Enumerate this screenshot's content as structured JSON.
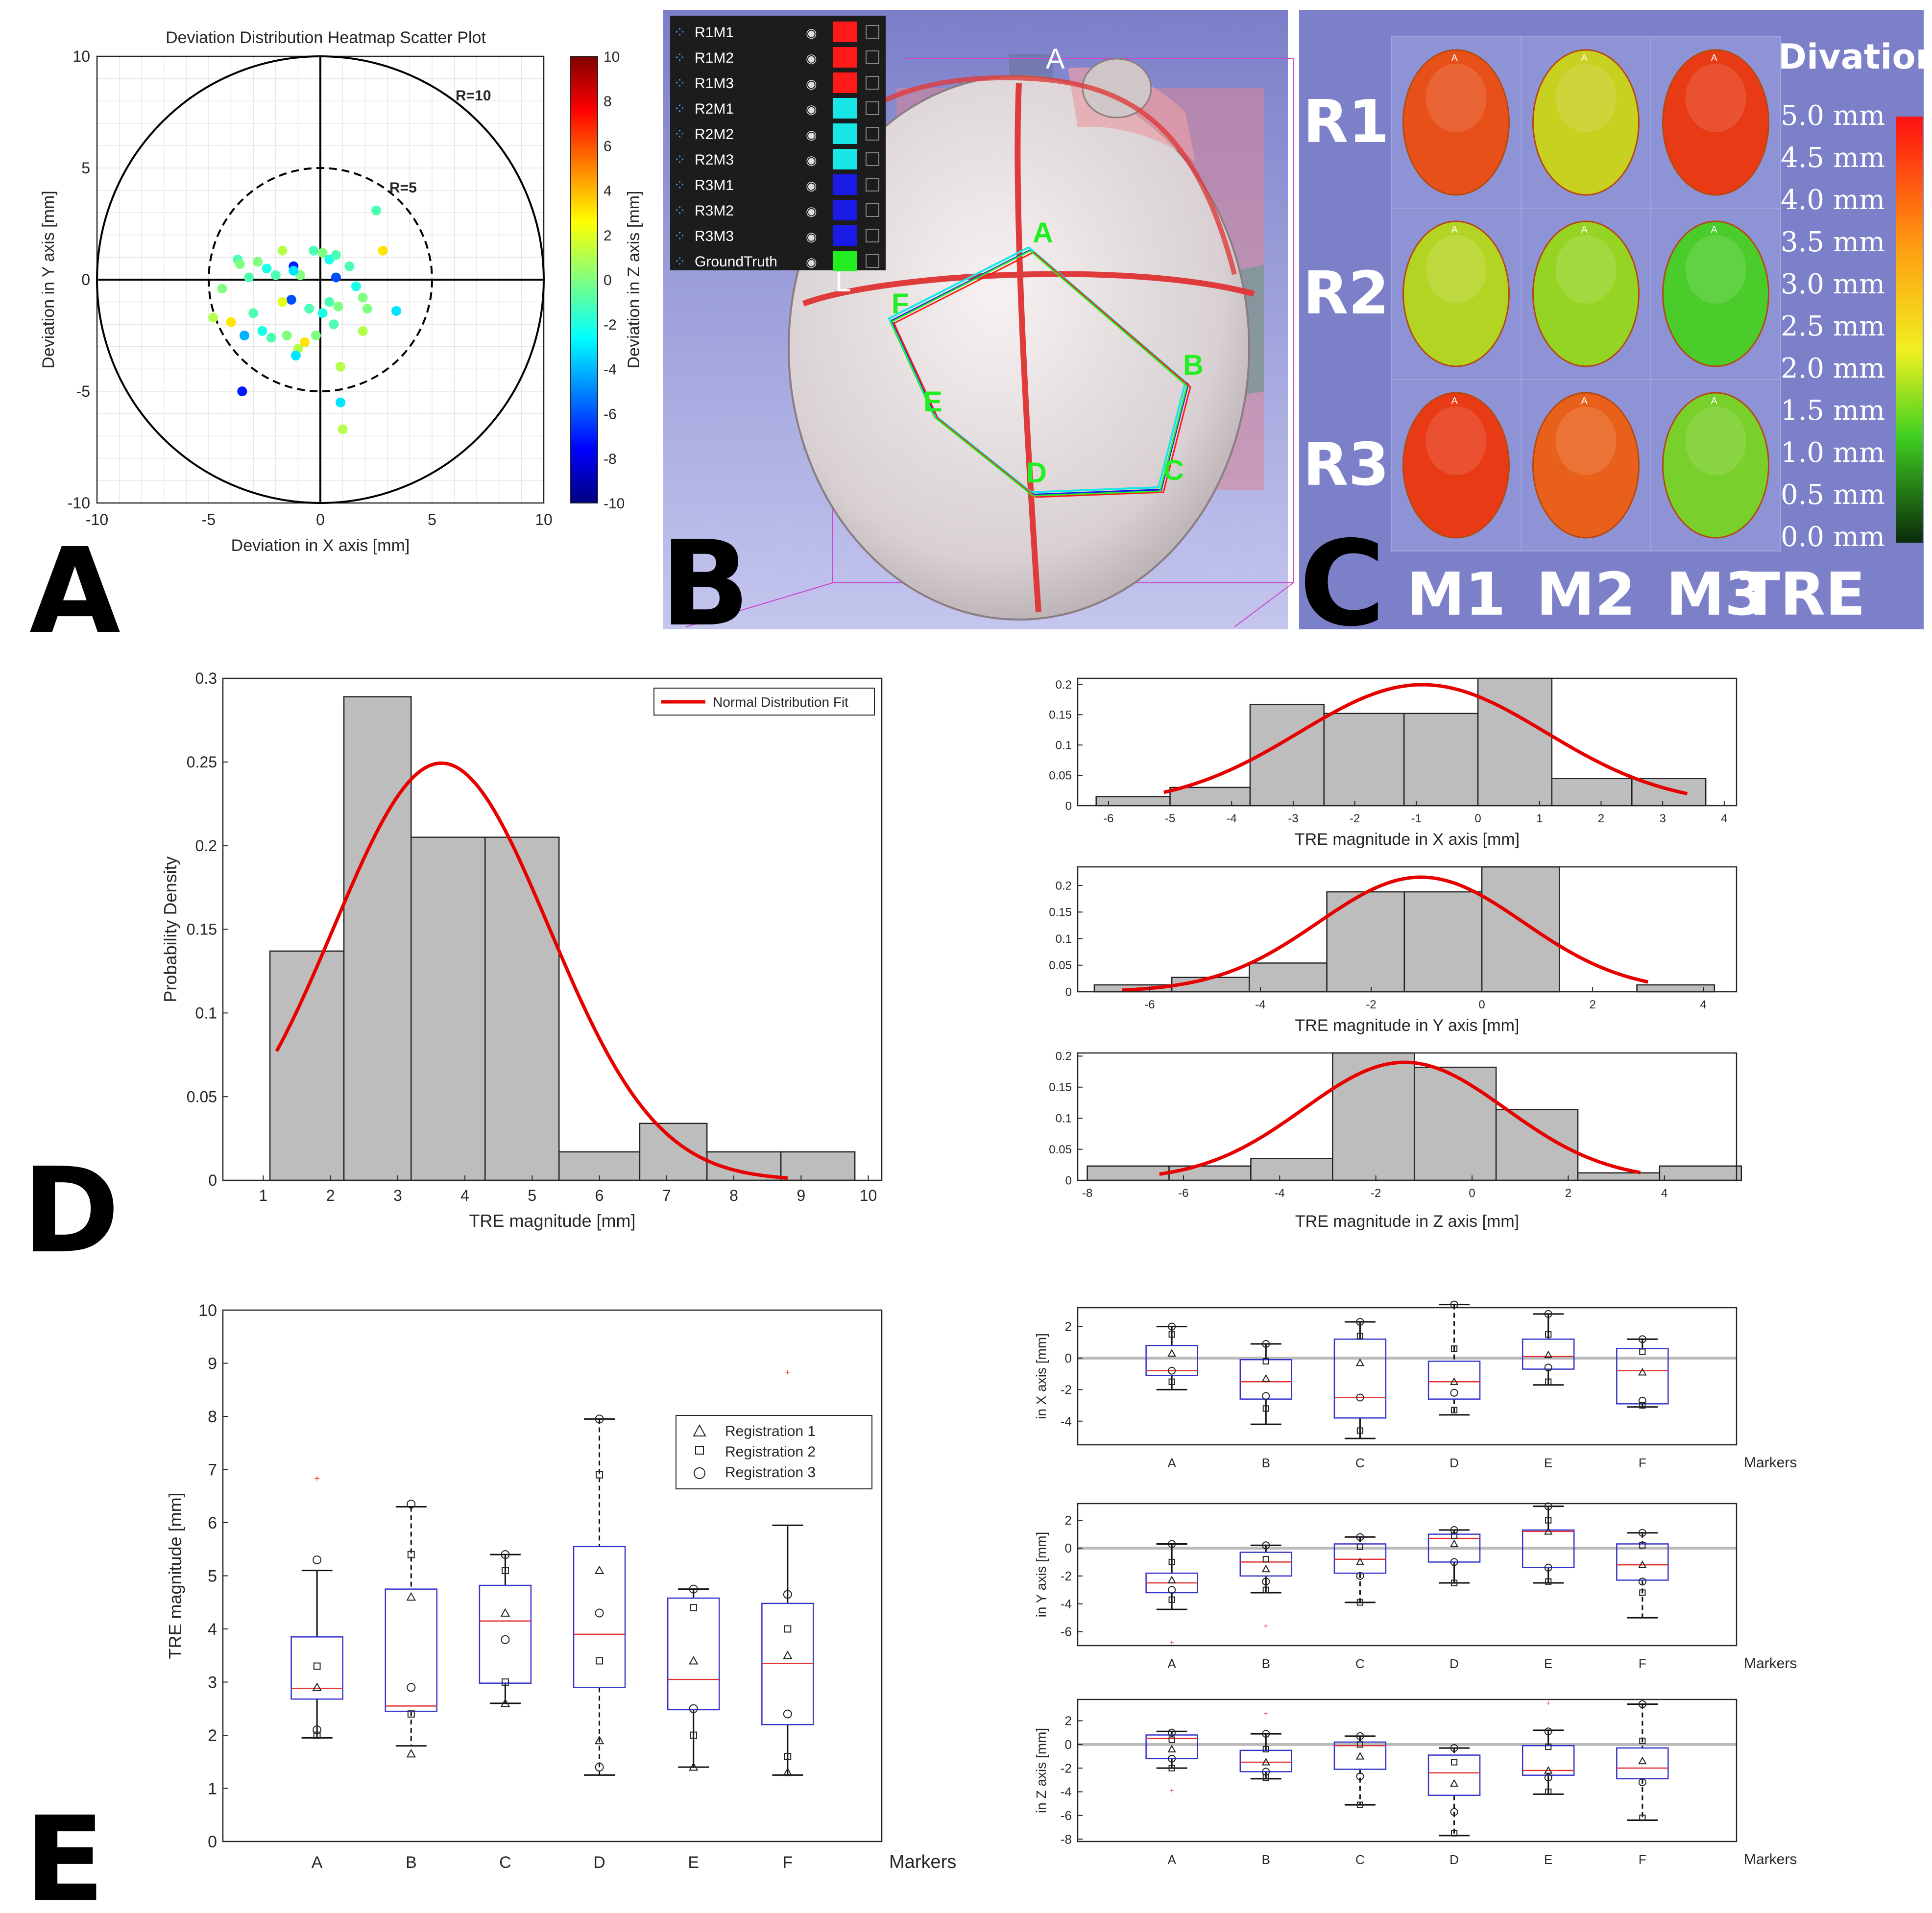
{
  "panel_labels": {
    "a": "A",
    "b": "B",
    "c": "C",
    "d": "D",
    "e": "E"
  },
  "chart_data": [
    {
      "id": "A",
      "type": "scatter",
      "title": "Deviation Distribution Heatmap Scatter Plot",
      "xlabel": "Deviation in X axis [mm]",
      "ylabel": "Deviation in Y axis [mm]",
      "xlim": [
        -10,
        10
      ],
      "ylim": [
        -10,
        10
      ],
      "xticks": [
        -10,
        -5,
        0,
        5,
        10
      ],
      "yticks": [
        -10,
        -5,
        0,
        5,
        10
      ],
      "circles": [
        {
          "r": 10,
          "label": "R=10",
          "style": "solid"
        },
        {
          "r": 5,
          "label": "R=5",
          "style": "dashed"
        }
      ],
      "colorbar": {
        "label": "Deviation in Z axis [mm]",
        "range": [
          -10,
          10
        ],
        "ticks": [
          10,
          8,
          6,
          4,
          2,
          0,
          -2,
          -4,
          -6,
          -8,
          -10
        ]
      },
      "points": [
        {
          "x": 2.5,
          "y": 3.1,
          "z": -1
        },
        {
          "x": 2.8,
          "y": 1.3,
          "z": 3
        },
        {
          "x": -1.2,
          "y": 0.6,
          "z": -7
        },
        {
          "x": -1.3,
          "y": -0.9,
          "z": -6
        },
        {
          "x": -3.5,
          "y": -5.0,
          "z": -7
        },
        {
          "x": 0.7,
          "y": 0.1,
          "z": -6
        },
        {
          "x": -1.7,
          "y": -1.0,
          "z": 2
        },
        {
          "x": -4.8,
          "y": -1.7,
          "z": 1
        },
        {
          "x": -4.4,
          "y": -0.4,
          "z": 0
        },
        {
          "x": -3.7,
          "y": 0.9,
          "z": -1
        },
        {
          "x": -3.6,
          "y": 0.7,
          "z": 0
        },
        {
          "x": -3.2,
          "y": 0.1,
          "z": -1
        },
        {
          "x": -2.8,
          "y": 0.8,
          "z": 0
        },
        {
          "x": -2.4,
          "y": 0.5,
          "z": -2
        },
        {
          "x": -2.0,
          "y": 0.2,
          "z": -1
        },
        {
          "x": -1.7,
          "y": 1.3,
          "z": 1
        },
        {
          "x": -0.9,
          "y": 0.2,
          "z": 0
        },
        {
          "x": -0.3,
          "y": 1.3,
          "z": -1
        },
        {
          "x": 0.1,
          "y": 1.2,
          "z": 0
        },
        {
          "x": 0.4,
          "y": 0.9,
          "z": -2
        },
        {
          "x": 0.7,
          "y": 1.1,
          "z": -1
        },
        {
          "x": 1.3,
          "y": 0.6,
          "z": -1
        },
        {
          "x": 1.6,
          "y": -0.3,
          "z": -2
        },
        {
          "x": 2.1,
          "y": -1.3,
          "z": 0
        },
        {
          "x": 1.9,
          "y": -2.3,
          "z": 1
        },
        {
          "x": 3.4,
          "y": -1.4,
          "z": -3
        },
        {
          "x": -4.0,
          "y": -1.9,
          "z": 3
        },
        {
          "x": -3.0,
          "y": -1.5,
          "z": -1
        },
        {
          "x": -2.6,
          "y": -2.3,
          "z": -2
        },
        {
          "x": -2.2,
          "y": -2.6,
          "z": -1
        },
        {
          "x": -1.5,
          "y": -2.5,
          "z": 0
        },
        {
          "x": -1.0,
          "y": -3.1,
          "z": 1
        },
        {
          "x": -1.1,
          "y": -3.4,
          "z": -3
        },
        {
          "x": -0.7,
          "y": -2.8,
          "z": 3
        },
        {
          "x": -0.2,
          "y": -2.5,
          "z": 0
        },
        {
          "x": 0.4,
          "y": -1.0,
          "z": -1
        },
        {
          "x": 0.8,
          "y": -1.2,
          "z": 0
        },
        {
          "x": 0.1,
          "y": -1.5,
          "z": -2
        },
        {
          "x": 0.6,
          "y": -2.0,
          "z": -1
        },
        {
          "x": 0.9,
          "y": -3.9,
          "z": 1
        },
        {
          "x": 0.9,
          "y": -5.5,
          "z": -3
        },
        {
          "x": 1.0,
          "y": -6.7,
          "z": 1
        },
        {
          "x": -0.5,
          "y": -1.3,
          "z": -1
        },
        {
          "x": 1.9,
          "y": -0.8,
          "z": 0
        },
        {
          "x": -3.4,
          "y": -2.5,
          "z": -4
        },
        {
          "x": -1.2,
          "y": 0.4,
          "z": -3
        }
      ]
    },
    {
      "id": "D-main",
      "type": "bar",
      "xlabel": "TRE magnitude [mm]",
      "ylabel": "Probability Density",
      "legend": "Normal Distribution Fit",
      "xlim": [
        0.4,
        10.2
      ],
      "ylim": [
        0,
        0.3
      ],
      "xticks": [
        1,
        2,
        3,
        4,
        5,
        6,
        7,
        8,
        9,
        10
      ],
      "yticks": [
        0,
        0.05,
        0.1,
        0.15,
        0.2,
        0.25,
        0.3
      ],
      "bin_edges": [
        1.1,
        2.2,
        3.2,
        4.3,
        5.4,
        6.6,
        7.6,
        8.7,
        9.8
      ],
      "values": [
        0.137,
        0.289,
        0.205,
        0.205,
        0.017,
        0.034,
        0.017,
        0.017
      ],
      "fit": {
        "mean": 3.65,
        "sd": 1.6,
        "range": [
          1.2,
          8.8
        ]
      }
    },
    {
      "id": "D-x",
      "type": "bar",
      "xlabel": "TRE magnitude in X axis [mm]",
      "xlim": [
        -6.5,
        4.2
      ],
      "ylim": [
        0,
        0.21
      ],
      "xticks": [
        -6,
        -5,
        -4,
        -3,
        -2,
        -1,
        0,
        1,
        2,
        3,
        4
      ],
      "yticks": [
        0,
        0.05,
        0.1,
        0.15,
        0.2
      ],
      "bin_edges": [
        -6.2,
        -5.0,
        -3.7,
        -2.5,
        -1.2,
        0,
        1.2,
        2.5,
        3.7
      ],
      "values": [
        0.015,
        0.03,
        0.167,
        0.152,
        0.152,
        0.21,
        0.045,
        0.045
      ],
      "fit": {
        "mean": -0.9,
        "sd": 2.0,
        "range": [
          -5.1,
          3.4
        ]
      }
    },
    {
      "id": "D-y",
      "type": "bar",
      "xlabel": "TRE magnitude in Y axis [mm]",
      "xlim": [
        -7.3,
        4.6
      ],
      "ylim": [
        0,
        0.235
      ],
      "xticks": [
        -6,
        -4,
        -2,
        0,
        2,
        4
      ],
      "yticks": [
        0,
        0.05,
        0.1,
        0.15,
        0.2
      ],
      "bin_edges": [
        -7.0,
        -5.6,
        -4.2,
        -2.8,
        -1.4,
        0,
        1.4,
        2.8,
        4.2
      ],
      "values": [
        0.013,
        0.027,
        0.054,
        0.188,
        0.188,
        0.235,
        0,
        0.013
      ],
      "fit": {
        "mean": -1.1,
        "sd": 1.85,
        "range": [
          -6.5,
          3.0
        ]
      }
    },
    {
      "id": "D-z",
      "type": "bar",
      "xlabel": "TRE magnitude in Z axis [mm]",
      "xlim": [
        -8.2,
        5.5
      ],
      "ylim": [
        0,
        0.205
      ],
      "xticks": [
        -8,
        -6,
        -4,
        -2,
        0,
        2,
        4
      ],
      "yticks": [
        0,
        0.05,
        0.1,
        0.15,
        0.2
      ],
      "bin_edges": [
        -8.0,
        -6.3,
        -4.6,
        -2.9,
        -1.2,
        0.5,
        2.2,
        3.9,
        5.6
      ],
      "values": [
        0.023,
        0.023,
        0.035,
        0.205,
        0.182,
        0.114,
        0.012,
        0.023
      ],
      "fit": {
        "mean": -1.4,
        "sd": 2.1,
        "range": [
          -6.5,
          3.5
        ]
      }
    },
    {
      "id": "E-main",
      "type": "box",
      "ylabel": "TRE magnitude [mm]",
      "xlabel": "Markers",
      "ylim": [
        0,
        10
      ],
      "yticks": [
        0,
        1,
        2,
        3,
        4,
        5,
        6,
        7,
        8,
        9,
        10
      ],
      "categories": [
        "A",
        "B",
        "C",
        "D",
        "E",
        "F"
      ],
      "legend": [
        "Registration 1",
        "Registration 2",
        "Registration 3"
      ],
      "boxes": [
        {
          "q1": 2.68,
          "med": 2.88,
          "q3": 3.85,
          "lo": 1.95,
          "hi": 5.1,
          "out": [
            6.85
          ],
          "dashed": false,
          "pts": [
            5.3,
            3.3,
            2.9,
            2.1,
            2.0
          ]
        },
        {
          "q1": 2.45,
          "med": 2.55,
          "q3": 4.75,
          "lo": 1.8,
          "hi": 6.3,
          "out": [],
          "dashed": true,
          "pts": [
            6.35,
            5.4,
            4.6,
            2.9,
            2.4,
            1.65
          ]
        },
        {
          "q1": 2.98,
          "med": 4.15,
          "q3": 4.82,
          "lo": 2.6,
          "hi": 5.4,
          "out": [],
          "dashed": false,
          "pts": [
            5.4,
            5.1,
            4.3,
            3.8,
            3.0,
            2.6
          ]
        },
        {
          "q1": 2.9,
          "med": 3.9,
          "q3": 5.55,
          "lo": 1.25,
          "hi": 7.95,
          "out": [],
          "dashed": true,
          "pts": [
            7.95,
            6.9,
            5.1,
            4.3,
            3.4,
            1.9,
            1.4
          ]
        },
        {
          "q1": 2.48,
          "med": 3.05,
          "q3": 4.58,
          "lo": 1.4,
          "hi": 4.75,
          "out": [],
          "dashed": false,
          "pts": [
            4.75,
            4.4,
            3.4,
            2.5,
            2.0,
            1.4
          ]
        },
        {
          "q1": 2.2,
          "med": 3.35,
          "q3": 4.48,
          "lo": 1.25,
          "hi": 5.95,
          "out": [
            8.85
          ],
          "dashed": false,
          "pts": [
            4.65,
            4.0,
            3.5,
            2.4,
            1.6,
            1.3
          ]
        }
      ]
    },
    {
      "id": "E-x",
      "type": "box",
      "ylabel": "in X axis [mm]",
      "xlabel": "Markers",
      "ylim": [
        -5.5,
        3.2
      ],
      "yticks": [
        2,
        0,
        -2,
        -4
      ],
      "categories": [
        "A",
        "B",
        "C",
        "D",
        "E",
        "F"
      ],
      "boxes": [
        {
          "q1": -1.1,
          "med": -0.8,
          "q3": 0.8,
          "lo": -2.0,
          "hi": 2.0,
          "out": [],
          "dashed": false,
          "pts": [
            2.0,
            1.5,
            0.3,
            -0.8,
            -1.5
          ]
        },
        {
          "q1": -2.6,
          "med": -1.5,
          "q3": -0.1,
          "lo": -4.2,
          "hi": 0.9,
          "out": [],
          "dashed": false,
          "pts": [
            0.9,
            -0.2,
            -1.3,
            -2.4,
            -3.2
          ]
        },
        {
          "q1": -3.8,
          "med": -2.5,
          "q3": 1.2,
          "lo": -5.1,
          "hi": 2.3,
          "out": [],
          "dashed": false,
          "pts": [
            2.3,
            1.4,
            -0.3,
            -2.5,
            -4.6
          ]
        },
        {
          "q1": -2.6,
          "med": -1.5,
          "q3": -0.2,
          "lo": -3.6,
          "hi": 3.4,
          "out": [],
          "dashed": true,
          "pts": [
            3.4,
            0.6,
            -1.5,
            -2.2,
            -3.3
          ]
        },
        {
          "q1": -0.7,
          "med": 0.1,
          "q3": 1.2,
          "lo": -1.7,
          "hi": 2.8,
          "out": [],
          "dashed": false,
          "pts": [
            2.8,
            1.5,
            0.2,
            -0.6,
            -1.5
          ]
        },
        {
          "q1": -2.9,
          "med": -0.8,
          "q3": 0.6,
          "lo": -3.1,
          "hi": 1.2,
          "out": [],
          "dashed": false,
          "pts": [
            1.2,
            0.4,
            -0.9,
            -2.7,
            -3.0
          ]
        }
      ]
    },
    {
      "id": "E-y",
      "type": "box",
      "ylabel": "in Y axis [mm]",
      "xlabel": "Markers",
      "ylim": [
        -7,
        3.2
      ],
      "yticks": [
        2,
        0,
        -2,
        -4,
        -6
      ],
      "categories": [
        "A",
        "B",
        "C",
        "D",
        "E",
        "F"
      ],
      "boxes": [
        {
          "q1": -3.2,
          "med": -2.5,
          "q3": -1.8,
          "lo": -4.4,
          "hi": 0.3,
          "out": [
            -6.7
          ],
          "dashed": false,
          "pts": [
            0.3,
            -1.0,
            -2.3,
            -3.0,
            -3.7
          ]
        },
        {
          "q1": -2.0,
          "med": -1.0,
          "q3": -0.3,
          "lo": -3.2,
          "hi": 0.2,
          "out": [
            -5.5
          ],
          "dashed": false,
          "pts": [
            0.2,
            -0.8,
            -1.5,
            -2.4,
            -3.0
          ]
        },
        {
          "q1": -1.8,
          "med": -0.8,
          "q3": 0.3,
          "lo": -3.9,
          "hi": 0.8,
          "out": [],
          "dashed": true,
          "pts": [
            0.8,
            0.1,
            -1.0,
            -2.0,
            -3.9
          ]
        },
        {
          "q1": -1.0,
          "med": 0.7,
          "q3": 1.0,
          "lo": -2.5,
          "hi": 1.3,
          "out": [],
          "dashed": false,
          "pts": [
            1.3,
            0.9,
            0.3,
            -1.0,
            -2.5
          ]
        },
        {
          "q1": -1.4,
          "med": 1.2,
          "q3": 1.3,
          "lo": -2.5,
          "hi": 3.0,
          "out": [],
          "dashed": false,
          "pts": [
            3.0,
            2.0,
            1.2,
            -1.4,
            -2.4
          ]
        },
        {
          "q1": -2.3,
          "med": -1.2,
          "q3": 0.3,
          "lo": -5.0,
          "hi": 1.1,
          "out": [],
          "dashed": true,
          "pts": [
            1.1,
            0.2,
            -1.2,
            -2.4,
            -3.2
          ]
        }
      ]
    },
    {
      "id": "E-z",
      "type": "box",
      "ylabel": "in Z axis [mm]",
      "xlabel": "Markers",
      "ylim": [
        -8.2,
        3.8
      ],
      "yticks": [
        2,
        0,
        -2,
        -4,
        -6,
        -8
      ],
      "categories": [
        "A",
        "B",
        "C",
        "D",
        "E",
        "F"
      ],
      "boxes": [
        {
          "q1": -1.2,
          "med": 0.5,
          "q3": 0.8,
          "lo": -2.0,
          "hi": 1.1,
          "out": [
            -3.8
          ],
          "dashed": false,
          "pts": [
            1.0,
            0.4,
            -0.4,
            -1.2,
            -2.0
          ]
        },
        {
          "q1": -2.3,
          "med": -1.5,
          "q3": -0.5,
          "lo": -2.9,
          "hi": 0.9,
          "out": [
            2.7
          ],
          "dashed": false,
          "pts": [
            0.9,
            -0.4,
            -1.5,
            -2.3,
            -2.8
          ]
        },
        {
          "q1": -2.1,
          "med": -0.1,
          "q3": 0.2,
          "lo": -5.1,
          "hi": 0.7,
          "out": [],
          "dashed": true,
          "pts": [
            0.7,
            0.0,
            -1.0,
            -2.7,
            -5.1
          ]
        },
        {
          "q1": -4.3,
          "med": -2.4,
          "q3": -0.9,
          "lo": -7.7,
          "hi": -0.3,
          "out": [],
          "dashed": true,
          "pts": [
            -0.3,
            -1.5,
            -3.3,
            -5.7,
            -7.5
          ]
        },
        {
          "q1": -2.6,
          "med": -2.2,
          "q3": -0.1,
          "lo": -4.2,
          "hi": 1.2,
          "out": [
            3.6
          ],
          "dashed": false,
          "pts": [
            1.1,
            -0.2,
            -2.2,
            -2.8,
            -4.0
          ]
        },
        {
          "q1": -2.9,
          "med": -2.0,
          "q3": -0.3,
          "lo": -6.4,
          "hi": 3.4,
          "out": [],
          "dashed": true,
          "pts": [
            3.4,
            0.3,
            -1.4,
            -3.2,
            -6.2
          ]
        }
      ]
    }
  ],
  "panelB": {
    "layers": [
      {
        "name": "R1M1",
        "color": "#ff1a1a"
      },
      {
        "name": "R1M2",
        "color": "#ff1a1a"
      },
      {
        "name": "R1M3",
        "color": "#ff1a1a"
      },
      {
        "name": "R2M1",
        "color": "#19e6e6"
      },
      {
        "name": "R2M2",
        "color": "#19e6e6"
      },
      {
        "name": "R2M3",
        "color": "#19e6e6"
      },
      {
        "name": "R3M1",
        "color": "#1a1ae6"
      },
      {
        "name": "R3M2",
        "color": "#1a1ae6"
      },
      {
        "name": "R3M3",
        "color": "#1a1ae6"
      },
      {
        "name": "GroundTruth",
        "color": "#22ee22"
      }
    ],
    "view_label_top": "A",
    "view_label_bottom": "L",
    "markers": [
      "A",
      "B",
      "C",
      "D",
      "E",
      "F"
    ]
  },
  "panelC": {
    "rows": [
      "R1",
      "R2",
      "R3"
    ],
    "cols": [
      "M1",
      "M2",
      "M3"
    ],
    "tre_label": "TRE",
    "title": "Divation",
    "scale": [
      "5.0 mm",
      "4.5 mm",
      "4.0 mm",
      "3.5 mm",
      "3.0 mm",
      "2.5 mm",
      "2.0 mm",
      "1.5 mm",
      "1.0 mm",
      "0.5 mm",
      "0.0 mm"
    ],
    "maps": [
      [
        "#e8501a",
        "#c8d020",
        "#e83a15"
      ],
      [
        "#b4d424",
        "#96d424",
        "#4acc2a"
      ],
      [
        "#e83a15",
        "#e8601a",
        "#7ad02a"
      ]
    ],
    "head_marker": "A"
  }
}
